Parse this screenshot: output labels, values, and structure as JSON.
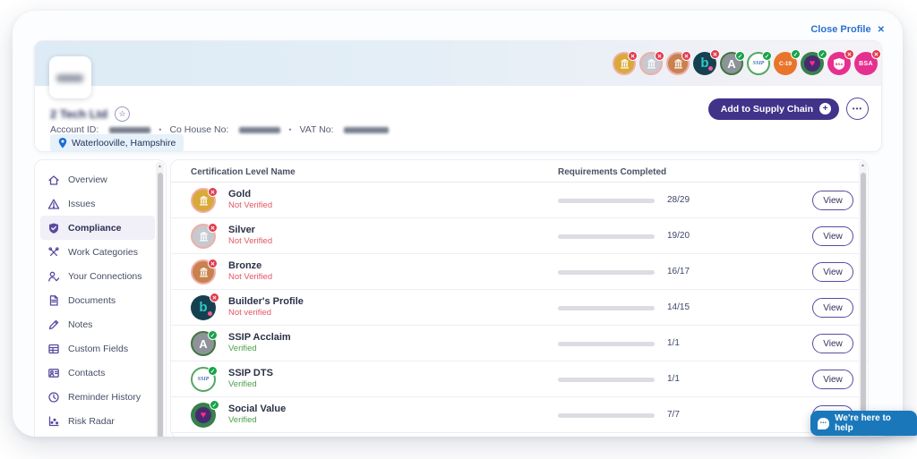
{
  "window": {
    "close_profile_label": "Close Profile",
    "close_icon": "✕"
  },
  "header": {
    "company_name": "2 Tech Ltd",
    "account_id_label": "Account ID:",
    "co_house_label": "Co House No:",
    "vat_label": "VAT No:",
    "separator": "•",
    "location": "Waterlooville, Hampshire",
    "add_to_supply_chain_label": "Add to Supply Chain",
    "more_icon": "•••",
    "badges": [
      {
        "name": "gold-badge-icon",
        "kind": "gold",
        "status": "error"
      },
      {
        "name": "silver-badge-icon",
        "kind": "silver",
        "status": "error"
      },
      {
        "name": "bronze-badge-icon",
        "kind": "bronze",
        "status": "error"
      },
      {
        "name": "builders-profile-badge-icon",
        "kind": "bp",
        "status": "error"
      },
      {
        "name": "ssip-acclaim-badge-icon",
        "kind": "acclaim",
        "status": "success"
      },
      {
        "name": "ssip-badge-icon",
        "kind": "ssip",
        "status": "success"
      },
      {
        "name": "c19-badge-icon",
        "kind": "c19",
        "status": "success"
      },
      {
        "name": "social-value-badge-icon",
        "kind": "social",
        "status": "success"
      },
      {
        "name": "bsa-shield-badge-icon",
        "kind": "bsa-shield",
        "status": "error"
      },
      {
        "name": "bsa-badge-icon",
        "kind": "bsa",
        "status": "error"
      }
    ]
  },
  "sidebar": {
    "items": [
      {
        "label": "Overview",
        "icon": "home",
        "active": false
      },
      {
        "label": "Issues",
        "icon": "warning",
        "active": false
      },
      {
        "label": "Compliance",
        "icon": "shield",
        "active": true
      },
      {
        "label": "Work Categories",
        "icon": "tools",
        "active": false
      },
      {
        "label": "Your Connections",
        "icon": "person",
        "active": false
      },
      {
        "label": "Documents",
        "icon": "document",
        "active": false
      },
      {
        "label": "Notes",
        "icon": "pencil",
        "active": false
      },
      {
        "label": "Custom Fields",
        "icon": "grid",
        "active": false
      },
      {
        "label": "Contacts",
        "icon": "contact",
        "active": false
      },
      {
        "label": "Reminder History",
        "icon": "clock",
        "active": false
      },
      {
        "label": "Risk Radar",
        "icon": "chart",
        "active": false
      }
    ]
  },
  "table": {
    "columns": [
      "Certification Level Name",
      "Requirements Completed"
    ],
    "view_label": "View",
    "rows": [
      {
        "name": "Gold",
        "status": "Not Verified",
        "verified": false,
        "kind": "gold",
        "completed": 28,
        "total": 29,
        "fraction": "28/29"
      },
      {
        "name": "Silver",
        "status": "Not Verified",
        "verified": false,
        "kind": "silver",
        "completed": 19,
        "total": 20,
        "fraction": "19/20"
      },
      {
        "name": "Bronze",
        "status": "Not Verified",
        "verified": false,
        "kind": "bronze",
        "completed": 16,
        "total": 17,
        "fraction": "16/17"
      },
      {
        "name": "Builder's Profile",
        "status": "Not verified",
        "verified": false,
        "kind": "bp",
        "completed": 14,
        "total": 15,
        "fraction": "14/15"
      },
      {
        "name": "SSIP Acclaim",
        "status": "Verified",
        "verified": true,
        "kind": "acclaim",
        "completed": 1,
        "total": 1,
        "fraction": "1/1"
      },
      {
        "name": "SSIP DTS",
        "status": "Verified",
        "verified": true,
        "kind": "ssip",
        "completed": 1,
        "total": 1,
        "fraction": "1/1"
      },
      {
        "name": "Social Value",
        "status": "Verified",
        "verified": true,
        "kind": "social",
        "completed": 7,
        "total": 7,
        "fraction": "7/7"
      }
    ]
  },
  "chat": {
    "label": "We're here to help"
  },
  "colors": {
    "progress_blue": "#1b6ba7",
    "accent_purple": "#41338a",
    "link_blue": "#2b6fd1",
    "error_red": "#e23a4e",
    "success_green": "#17a349",
    "chat_blue": "#1a78ba"
  }
}
